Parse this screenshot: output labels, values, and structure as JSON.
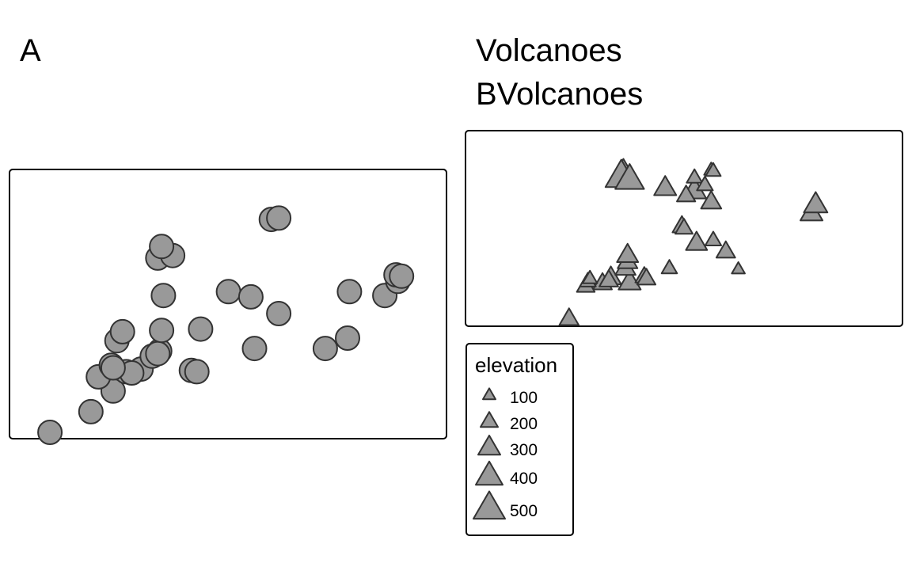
{
  "colors": {
    "marker_fill": "#999999",
    "marker_stroke": "#333333",
    "frame": "#000000",
    "background": "#ffffff"
  },
  "panel_a": {
    "title": "A",
    "marker_shape": "circle",
    "points": [
      [
        -0.97,
        -1.0
      ],
      [
        -0.75,
        -0.84
      ],
      [
        -0.63,
        -0.68
      ],
      [
        -0.71,
        -0.57
      ],
      [
        -0.64,
        -0.48
      ],
      [
        -0.56,
        -0.53
      ],
      [
        -0.48,
        -0.51
      ],
      [
        -0.53,
        -0.54
      ],
      [
        -0.63,
        -0.5
      ],
      [
        -0.42,
        -0.41
      ],
      [
        -0.38,
        -0.37
      ],
      [
        -0.39,
        -0.39
      ],
      [
        -0.37,
        -0.21
      ],
      [
        -0.61,
        -0.29
      ],
      [
        -0.58,
        -0.22
      ],
      [
        -0.16,
        -0.2
      ],
      [
        -0.21,
        -0.52
      ],
      [
        -0.18,
        -0.53
      ],
      [
        -0.36,
        0.06
      ],
      [
        -0.39,
        0.35
      ],
      [
        -0.31,
        0.37
      ],
      [
        -0.37,
        0.44
      ],
      [
        -0.01,
        0.09
      ],
      [
        0.11,
        0.05
      ],
      [
        0.26,
        -0.08
      ],
      [
        0.13,
        -0.35
      ],
      [
        0.51,
        -0.35
      ],
      [
        0.64,
        0.09
      ],
      [
        0.63,
        -0.27
      ],
      [
        0.83,
        0.06
      ],
      [
        0.9,
        0.17
      ],
      [
        0.89,
        0.22
      ],
      [
        0.92,
        0.21
      ],
      [
        0.22,
        0.65
      ],
      [
        0.26,
        0.66
      ]
    ],
    "xlim": [
      -1,
      1
    ],
    "ylim": [
      -1,
      1
    ]
  },
  "panel_b": {
    "title_line1": "Volcanoes",
    "title_line2": "BVolcanoes",
    "marker_shape": "triangle",
    "points": [
      [
        -0.55,
        -0.97,
        240
      ],
      [
        -0.39,
        -0.59,
        230
      ],
      [
        -0.47,
        -0.62,
        210
      ],
      [
        -0.46,
        -0.57,
        170
      ],
      [
        -0.35,
        -0.53,
        270
      ],
      [
        -0.26,
        -0.58,
        300
      ],
      [
        -0.19,
        -0.52,
        210
      ],
      [
        -0.18,
        -0.54,
        220
      ],
      [
        -0.45,
        -0.54,
        140
      ],
      [
        -0.36,
        -0.56,
        230
      ],
      [
        -0.28,
        -0.43,
        260
      ],
      [
        -0.27,
        -0.36,
        250
      ],
      [
        -0.27,
        -0.29,
        280
      ],
      [
        -0.07,
        -0.43,
        160
      ],
      [
        0.26,
        -0.44,
        110
      ],
      [
        0.06,
        -0.16,
        280
      ],
      [
        -0.01,
        0.02,
        230
      ],
      [
        -0.0,
        0.0,
        200
      ],
      [
        0.14,
        -0.13,
        170
      ],
      [
        0.05,
        0.4,
        330
      ],
      [
        0.2,
        -0.25,
        230
      ],
      [
        0.05,
        0.54,
        160
      ],
      [
        0.1,
        0.46,
        170
      ],
      [
        -0.29,
        0.58,
        420
      ],
      [
        -0.3,
        0.55,
        500
      ],
      [
        -0.26,
        0.52,
        440
      ],
      [
        -0.09,
        0.43,
        300
      ],
      [
        0.01,
        0.35,
        220
      ],
      [
        0.13,
        0.28,
        260
      ],
      [
        0.61,
        0.16,
        300
      ],
      [
        0.63,
        0.25,
        330
      ],
      [
        0.13,
        0.62,
        130
      ],
      [
        0.14,
        0.61,
        150
      ]
    ],
    "xlim": [
      -1,
      1
    ],
    "ylim": [
      -1,
      1
    ]
  },
  "legend": {
    "title": "elevation",
    "entries": [
      {
        "label": "100",
        "value": 100
      },
      {
        "label": "200",
        "value": 200
      },
      {
        "label": "300",
        "value": 300
      },
      {
        "label": "400",
        "value": 400
      },
      {
        "label": "500",
        "value": 500
      }
    ]
  }
}
